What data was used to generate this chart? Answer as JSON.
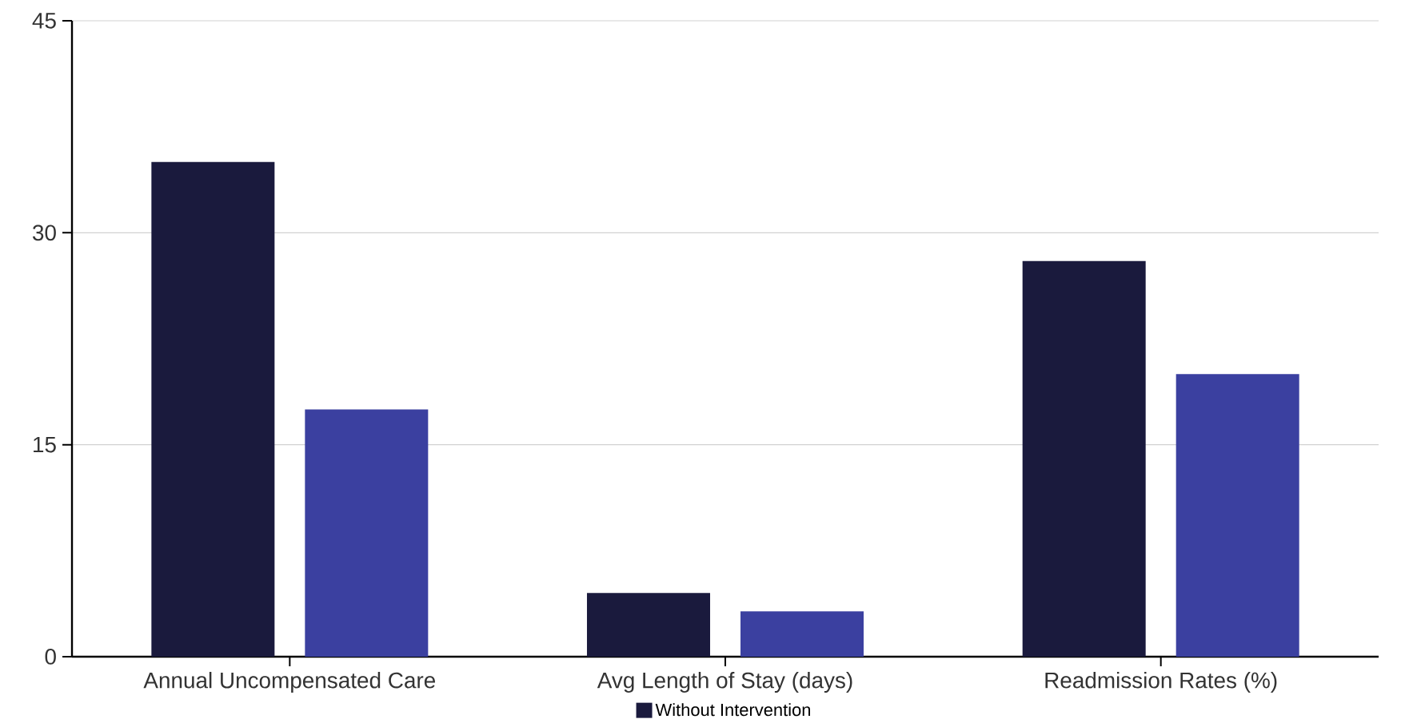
{
  "chart_data": {
    "type": "bar",
    "categories": [
      "Annual Uncompensated Care",
      "Avg Length of Stay (days)",
      "Readmission Rates (%)"
    ],
    "series": [
      {
        "name": "Without Intervention",
        "color": "#1a1a3d",
        "values": [
          35,
          4.5,
          28
        ]
      },
      {
        "color": "#3b40a0",
        "values": [
          17.5,
          3.2,
          20
        ]
      }
    ],
    "ylim": [
      0,
      45
    ],
    "yticks": [
      0,
      15,
      30,
      45
    ],
    "grid": "y",
    "legend": "bottom"
  }
}
